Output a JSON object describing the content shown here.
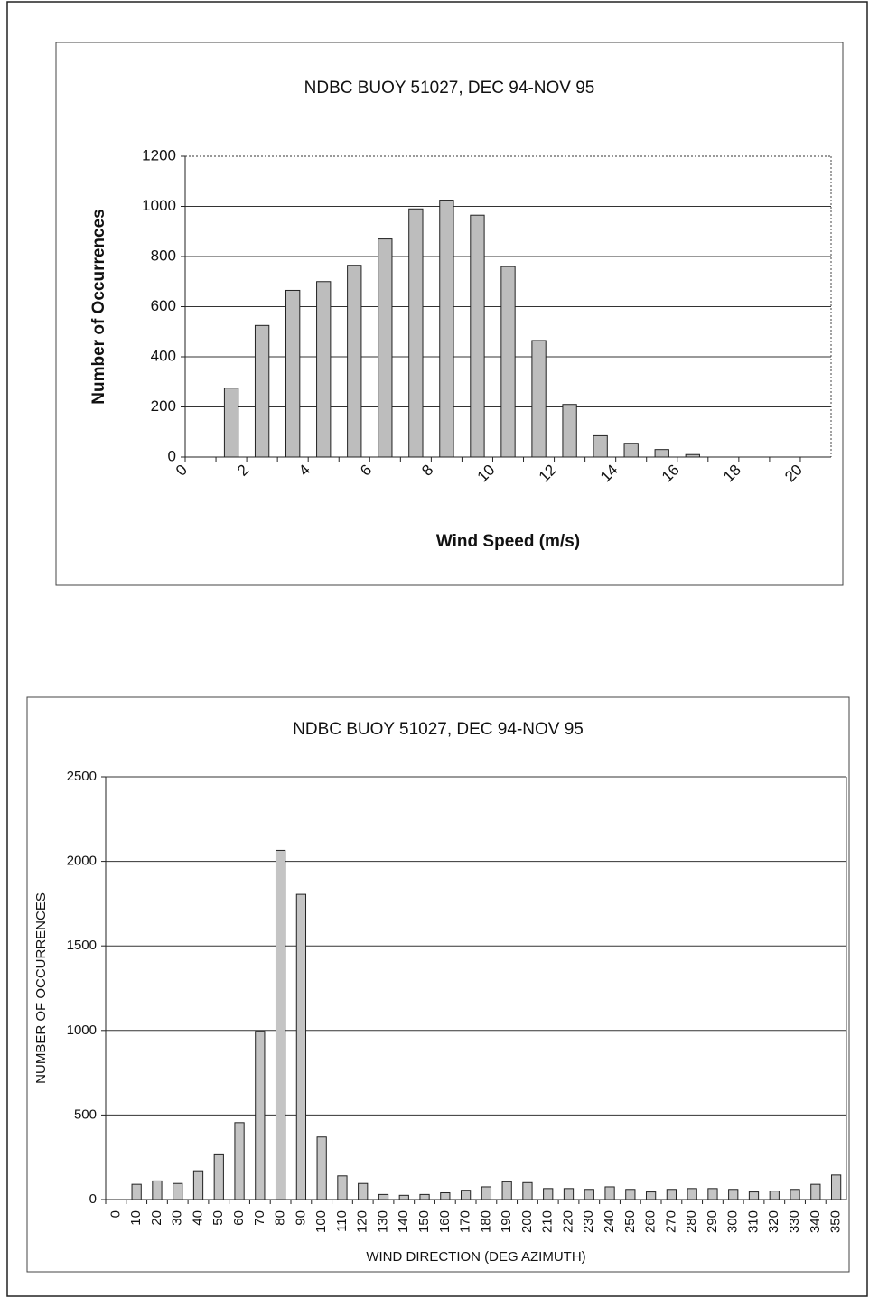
{
  "chart_data": [
    {
      "type": "bar",
      "title": "NDBC BUOY 51027, DEC 94-NOV 95",
      "x_label": "Wind Speed (m/s)",
      "y_label": "Number of Occurrences",
      "categories": [
        "0",
        null,
        "2",
        null,
        "4",
        null,
        "6",
        null,
        "8",
        null,
        "10",
        null,
        "12",
        null,
        "14",
        null,
        "16",
        null,
        "18",
        null,
        "20"
      ],
      "values": [
        0,
        275,
        525,
        665,
        700,
        765,
        870,
        990,
        1025,
        965,
        760,
        465,
        210,
        85,
        55,
        30,
        10,
        0,
        0,
        0,
        0
      ],
      "color": "#bdbdbd",
      "ylim": [
        0,
        1200
      ],
      "yticks": [
        0,
        200,
        400,
        600,
        800,
        1000,
        1200
      ],
      "grid": true
    },
    {
      "type": "bar",
      "title": "NDBC BUOY 51027, DEC 94-NOV 95",
      "x_label": "WIND DIRECTION (DEG AZIMUTH)",
      "y_label": "NUMBER OF OCCURRENCES",
      "categories": [
        "0",
        "10",
        "20",
        "30",
        "40",
        "50",
        "60",
        "70",
        "80",
        "90",
        "100",
        "110",
        "120",
        "130",
        "140",
        "150",
        "160",
        "170",
        "180",
        "190",
        "200",
        "210",
        "220",
        "230",
        "240",
        "250",
        "260",
        "270",
        "280",
        "290",
        "300",
        "310",
        "320",
        "330",
        "340",
        "350"
      ],
      "values": [
        0,
        90,
        110,
        95,
        170,
        265,
        455,
        995,
        2065,
        1805,
        370,
        140,
        95,
        30,
        25,
        30,
        40,
        55,
        75,
        105,
        100,
        65,
        65,
        60,
        75,
        60,
        45,
        60,
        65,
        65,
        60,
        45,
        50,
        60,
        90,
        145
      ],
      "color": "#c4c4c4",
      "ylim": [
        0,
        2500
      ],
      "yticks": [
        0,
        500,
        1000,
        1500,
        2000,
        2500
      ],
      "grid": true
    }
  ]
}
